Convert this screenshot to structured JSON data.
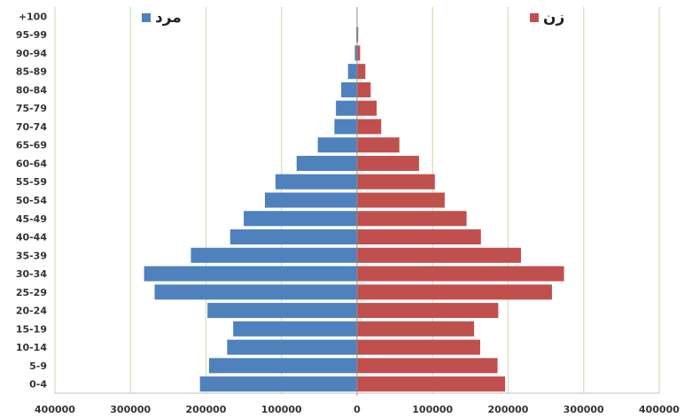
{
  "colors": {
    "male": "#4F81BD",
    "female": "#C0504D",
    "grid": "#D7E4BD",
    "axis": "#8c8c8c",
    "text": "#333333"
  },
  "chart_data": {
    "type": "bar",
    "orientation": "horizontal-pyramid",
    "categories": [
      "0-4",
      "5-9",
      "10-14",
      "15-19",
      "20-24",
      "25-29",
      "30-34",
      "35-39",
      "40-44",
      "45-49",
      "50-54",
      "55-59",
      "60-64",
      "65-69",
      "70-74",
      "75-79",
      "80-84",
      "85-89",
      "90-94",
      "95-99",
      "+100"
    ],
    "series": [
      {
        "name": "مرد",
        "values": [
          208000,
          196000,
          172000,
          164000,
          198000,
          268000,
          282000,
          220000,
          168000,
          150000,
          122000,
          108000,
          80000,
          52000,
          30000,
          28000,
          21000,
          12000,
          3000,
          1000,
          500
        ]
      },
      {
        "name": "زن",
        "values": [
          196000,
          186000,
          163000,
          155000,
          187000,
          258000,
          274000,
          217000,
          164000,
          145000,
          116000,
          103000,
          82000,
          56000,
          32000,
          26000,
          18000,
          11000,
          4000,
          1500,
          500
        ]
      }
    ],
    "xlim": [
      -400000,
      400000
    ],
    "x_ticks": [
      -400000,
      -300000,
      -200000,
      -100000,
      0,
      100000,
      200000,
      300000,
      400000
    ],
    "x_tick_labels": [
      "400000",
      "300000",
      "200000",
      "100000",
      "0",
      "100000",
      "200000",
      "300000",
      "400000"
    ],
    "grid": "vertical",
    "legend": {
      "male": "top-left",
      "female": "top-right"
    }
  }
}
